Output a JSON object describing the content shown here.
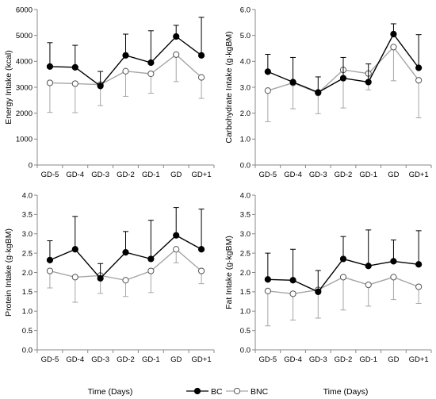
{
  "footer": {
    "xlabel_left": "Time (Days)",
    "xlabel_right": "Time (Days)",
    "legend": [
      {
        "name": "BC",
        "color": "#000000",
        "marker": "filled-circle"
      },
      {
        "name": "BNC",
        "color": "#a6a6a6",
        "marker": "open-circle"
      }
    ]
  },
  "chart_data": [
    {
      "type": "line",
      "title": "",
      "ylabel": "Energy Intake (kcal)",
      "xlabel": "",
      "ylim": [
        0,
        6000
      ],
      "yticks": [
        0,
        1000,
        2000,
        3000,
        4000,
        5000,
        6000
      ],
      "ytick_labels": [
        "0",
        "1000",
        "2000",
        "3000",
        "4000",
        "5000",
        "6000"
      ],
      "categories": [
        "GD-5",
        "GD-4",
        "GD-3",
        "GD-2",
        "GD-1",
        "GD",
        "GD+1"
      ],
      "error_bars": "one-sided",
      "series": [
        {
          "name": "BC",
          "values": [
            3800,
            3770,
            3050,
            4230,
            3950,
            4960,
            4230
          ],
          "errors": [
            920,
            850,
            560,
            820,
            1230,
            430,
            1470
          ]
        },
        {
          "name": "BNC",
          "values": [
            3170,
            3140,
            3100,
            3620,
            3520,
            4260,
            3380
          ],
          "errors": [
            1140,
            1120,
            810,
            970,
            750,
            1040,
            810
          ]
        }
      ]
    },
    {
      "type": "line",
      "title": "",
      "ylabel": "Carbohydrate Intake (g·kgBM)",
      "xlabel": "",
      "ylim": [
        0,
        6
      ],
      "yticks": [
        0,
        1,
        2,
        3,
        4,
        5,
        6
      ],
      "ytick_labels": [
        "0.0",
        "1.0",
        "2.0",
        "3.0",
        "4.0",
        "5.0",
        "6.0"
      ],
      "categories": [
        "GD-5",
        "GD-4",
        "GD-3",
        "GD-2",
        "GD-1",
        "GD",
        "GD+1"
      ],
      "error_bars": "one-sided",
      "series": [
        {
          "name": "BC",
          "values": [
            3.6,
            3.2,
            2.8,
            3.35,
            3.2,
            5.05,
            3.75
          ],
          "errors": [
            0.67,
            0.95,
            0.6,
            0.8,
            0.7,
            0.4,
            1.28
          ]
        },
        {
          "name": "BNC",
          "values": [
            2.87,
            3.17,
            2.78,
            3.67,
            3.53,
            4.55,
            3.27
          ],
          "errors": [
            1.2,
            1.0,
            0.8,
            1.47,
            0.63,
            1.3,
            1.45
          ]
        }
      ]
    },
    {
      "type": "line",
      "title": "",
      "ylabel": "Protein Intake (g·kgBM)",
      "xlabel": "",
      "ylim": [
        0,
        4
      ],
      "yticks": [
        0,
        0.5,
        1,
        1.5,
        2,
        2.5,
        3,
        3.5,
        4
      ],
      "ytick_labels": [
        "0.0",
        "0.5",
        "1.0",
        "1.5",
        "2.0",
        "2.5",
        "3.0",
        "3.5",
        "4.0"
      ],
      "categories": [
        "GD-5",
        "GD-4",
        "GD-3",
        "GD-2",
        "GD-1",
        "GD",
        "GD+1"
      ],
      "error_bars": "one-sided",
      "series": [
        {
          "name": "BC",
          "values": [
            2.32,
            2.6,
            1.85,
            2.52,
            2.35,
            2.96,
            2.6
          ],
          "errors": [
            0.5,
            0.85,
            0.38,
            0.54,
            1.0,
            0.72,
            1.04
          ]
        },
        {
          "name": "BNC",
          "values": [
            2.04,
            1.88,
            1.92,
            1.8,
            2.04,
            2.6,
            2.04
          ],
          "errors": [
            0.44,
            0.65,
            0.46,
            0.42,
            0.56,
            0.35,
            0.33
          ]
        }
      ]
    },
    {
      "type": "line",
      "title": "",
      "ylabel": "Fat Intake (g·kgBM)",
      "xlabel": "",
      "ylim": [
        0,
        4
      ],
      "yticks": [
        0,
        0.5,
        1,
        1.5,
        2,
        2.5,
        3,
        3.5,
        4
      ],
      "ytick_labels": [
        "0.0",
        "0.5",
        "1.0",
        "1.5",
        "2.0",
        "2.5",
        "3.0",
        "3.5",
        "4.0"
      ],
      "categories": [
        "GD-5",
        "GD-4",
        "GD-3",
        "GD-2",
        "GD-1",
        "GD",
        "GD+1"
      ],
      "error_bars": "one-sided",
      "series": [
        {
          "name": "BC",
          "values": [
            1.82,
            1.8,
            1.5,
            2.35,
            2.17,
            2.29,
            2.21
          ],
          "errors": [
            0.68,
            0.8,
            0.55,
            0.58,
            0.93,
            0.55,
            0.87
          ]
        },
        {
          "name": "BNC",
          "values": [
            1.52,
            1.45,
            1.55,
            1.88,
            1.68,
            1.88,
            1.63
          ],
          "errors": [
            0.9,
            0.68,
            0.73,
            0.85,
            0.55,
            0.58,
            0.43
          ]
        }
      ]
    }
  ]
}
